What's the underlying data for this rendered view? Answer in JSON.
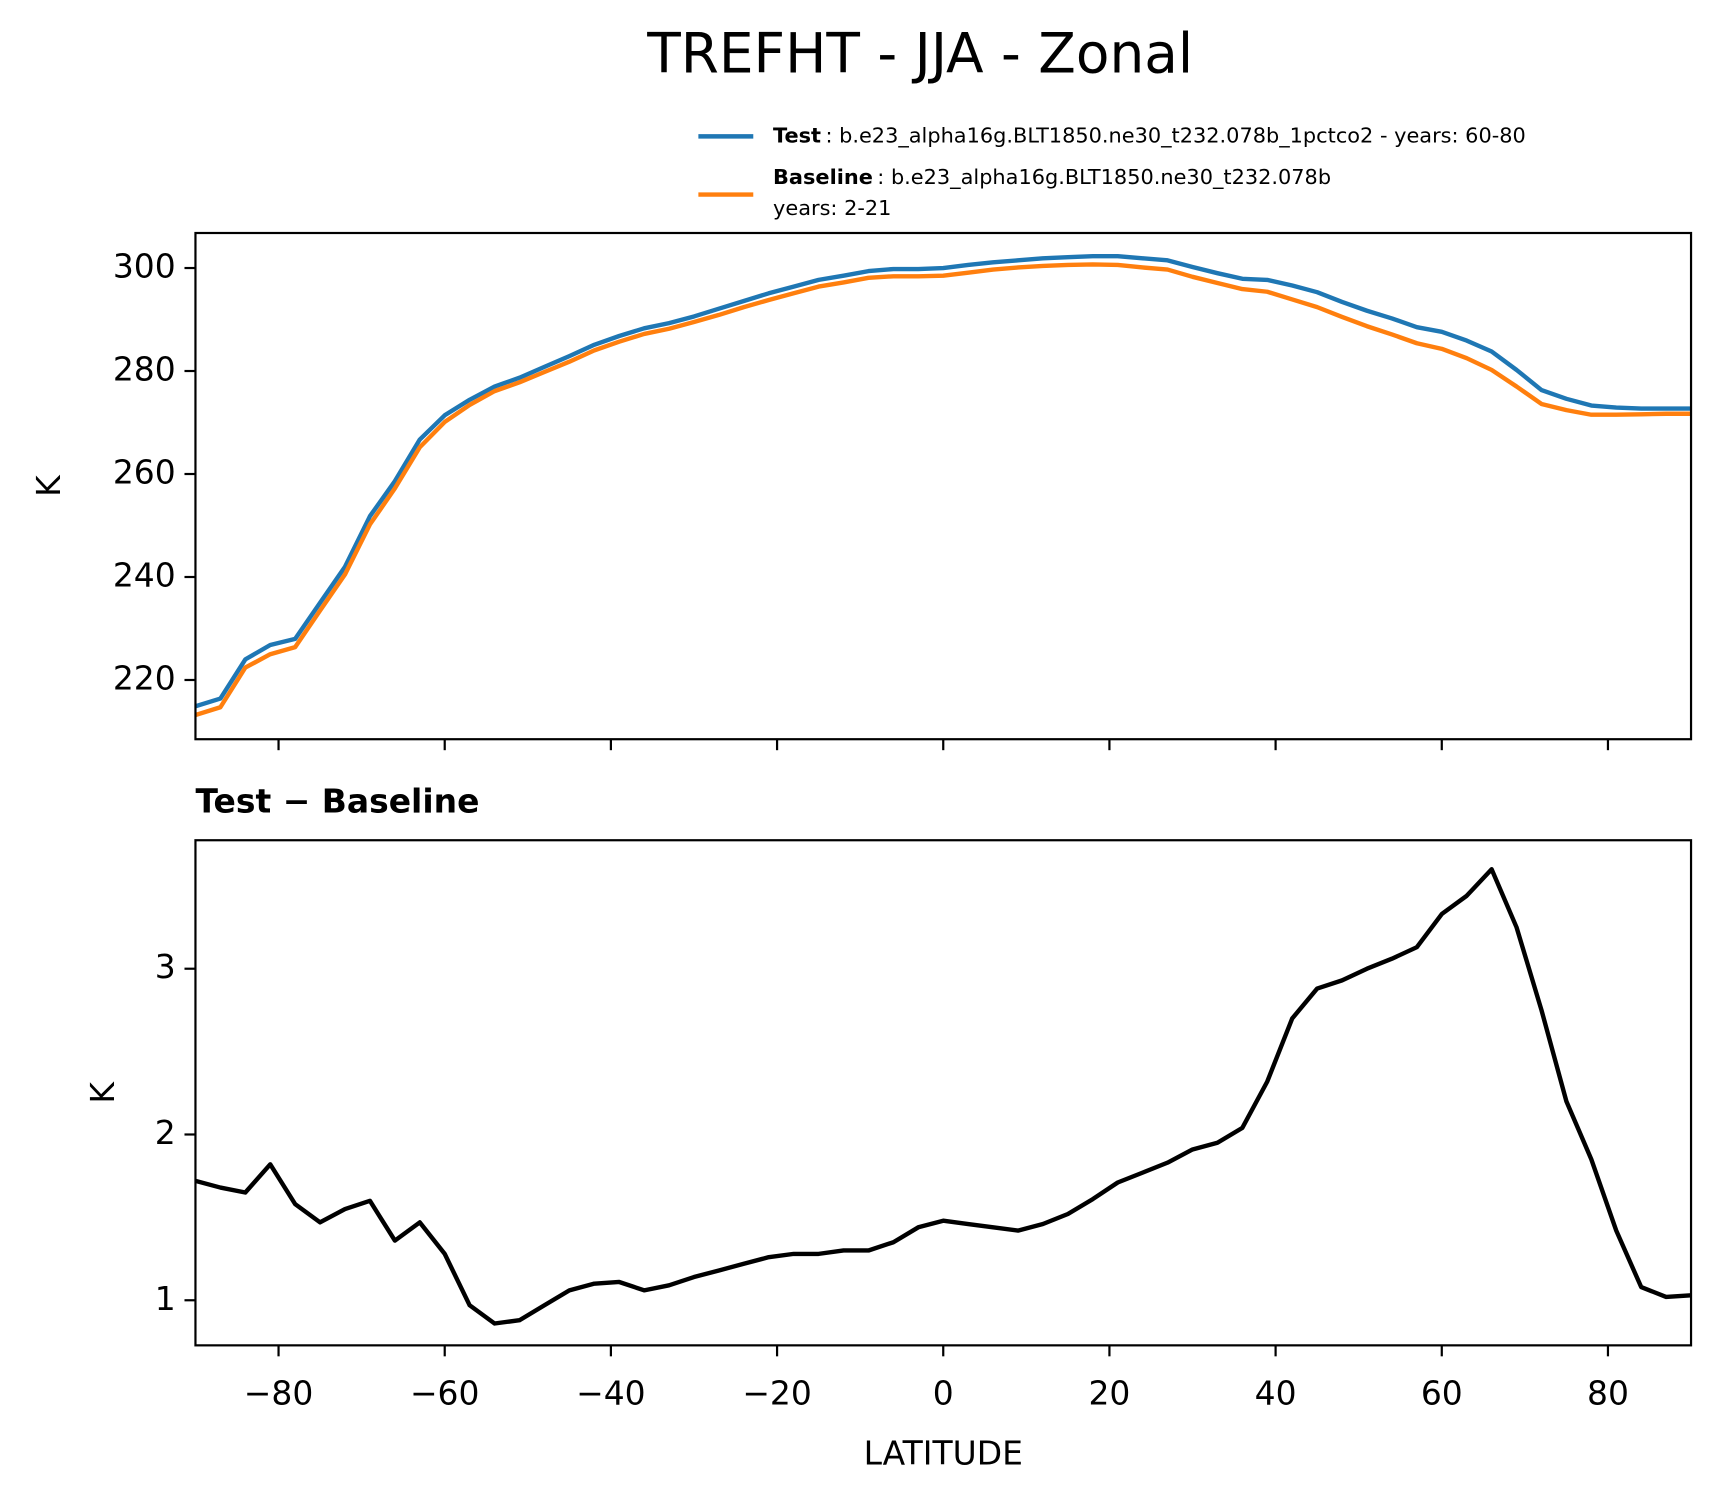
{
  "title": "TREFHT - JJA - Zonal",
  "chart_data": [
    {
      "type": "line",
      "ylabel": "K",
      "x": [
        -90,
        -87,
        -84,
        -81,
        -78,
        -75,
        -72,
        -69,
        -66,
        -63,
        -60,
        -57,
        -54,
        -51,
        -48,
        -45,
        -42,
        -39,
        -36,
        -33,
        -30,
        -27,
        -24,
        -21,
        -18,
        -15,
        -12,
        -9,
        -6,
        -3,
        0,
        3,
        6,
        9,
        12,
        15,
        18,
        21,
        24,
        27,
        30,
        33,
        36,
        39,
        42,
        45,
        48,
        51,
        54,
        57,
        60,
        63,
        66,
        69,
        72,
        75,
        78,
        81,
        84,
        87,
        90
      ],
      "series": [
        {
          "name": "Test",
          "description": ": b.e23_alpha16g.BLT1850.ne30_t232.078b_1pctco2 - years: 60-80",
          "color": "#1f77b4",
          "values": [
            214.9,
            216.4,
            224,
            226.8,
            228,
            235,
            242,
            251.8,
            258.6,
            266.7,
            271.4,
            274.4,
            277,
            278.7,
            280.8,
            282.9,
            285.1,
            286.8,
            288.3,
            289.3,
            290.6,
            292.1,
            293.6,
            295.1,
            296.4,
            297.7,
            298.5,
            299.4,
            299.8,
            299.8,
            300,
            300.6,
            301.1,
            301.5,
            301.9,
            302.1,
            302.3,
            302.3,
            301.9,
            301.5,
            300.2,
            299,
            297.9,
            297.7,
            296.6,
            295.3,
            293.4,
            291.7,
            290.2,
            288.5,
            287.6,
            285.9,
            283.8,
            280.2,
            276.3,
            274.6,
            273.3,
            272.9,
            272.7,
            272.7,
            272.7
          ]
        },
        {
          "name": "Baseline",
          "description": [
            ": b.e23_alpha16g.BLT1850.ne30_t232.078b",
            "years: 2-21"
          ],
          "color": "#ff7f0e",
          "values": [
            213.2,
            214.7,
            222.4,
            225.0,
            226.4,
            233.5,
            240.5,
            250.2,
            257.2,
            265.2,
            270.1,
            273.4,
            276.1,
            277.8,
            279.8,
            281.8,
            284.0,
            285.7,
            287.2,
            288.2,
            289.5,
            290.9,
            292.4,
            293.8,
            295.1,
            296.4,
            297.2,
            298.1,
            298.4,
            298.4,
            298.5,
            299.1,
            299.7,
            300.1,
            300.4,
            300.6,
            300.7,
            300.6,
            300.1,
            299.7,
            298.3,
            297.1,
            295.9,
            295.4,
            293.9,
            292.4,
            290.5,
            288.7,
            287.1,
            285.4,
            284.3,
            282.5,
            280.2,
            277.0,
            273.6,
            272.4,
            271.5,
            271.5,
            271.6,
            271.7,
            271.7
          ]
        }
      ],
      "xlim": [
        -90,
        90
      ],
      "xticks": [
        {
          "value": -80,
          "label": "−80"
        },
        {
          "value": -60,
          "label": "−60"
        },
        {
          "value": -40,
          "label": "−40"
        },
        {
          "value": -20,
          "label": "−20"
        },
        0,
        20,
        40,
        60,
        80
      ],
      "show_xtick_labels": false,
      "ylim": [
        208.5,
        306.8
      ],
      "yticks": [
        220,
        240,
        260,
        280,
        300
      ]
    },
    {
      "type": "line",
      "title": "Test − Baseline",
      "xlabel": "LATITUDE",
      "ylabel": "K",
      "x": [
        -90,
        -87,
        -84,
        -81,
        -78,
        -75,
        -72,
        -69,
        -66,
        -63,
        -60,
        -57,
        -54,
        -51,
        -48,
        -45,
        -42,
        -39,
        -36,
        -33,
        -30,
        -27,
        -24,
        -21,
        -18,
        -15,
        -12,
        -9,
        -6,
        -3,
        0,
        3,
        6,
        9,
        12,
        15,
        18,
        21,
        24,
        27,
        30,
        33,
        36,
        39,
        42,
        45,
        48,
        51,
        54,
        57,
        60,
        63,
        66,
        69,
        72,
        75,
        78,
        81,
        84,
        87,
        90
      ],
      "series": [
        {
          "color": "#000000",
          "values": [
            1.72,
            1.68,
            1.65,
            1.82,
            1.58,
            1.47,
            1.55,
            1.6,
            1.36,
            1.47,
            1.28,
            0.97,
            0.86,
            0.88,
            0.97,
            1.06,
            1.1,
            1.11,
            1.06,
            1.09,
            1.14,
            1.18,
            1.22,
            1.26,
            1.28,
            1.28,
            1.3,
            1.3,
            1.35,
            1.44,
            1.48,
            1.46,
            1.44,
            1.42,
            1.46,
            1.52,
            1.61,
            1.71,
            1.77,
            1.83,
            1.91,
            1.95,
            2.04,
            2.32,
            2.7,
            2.88,
            2.93,
            3.0,
            3.06,
            3.13,
            3.33,
            3.44,
            3.6,
            3.25,
            2.75,
            2.2,
            1.85,
            1.42,
            1.08,
            1.02,
            1.03
          ]
        }
      ],
      "xlim": [
        -90,
        90
      ],
      "xticks": [
        {
          "value": -80,
          "label": "−80"
        },
        {
          "value": -60,
          "label": "−60"
        },
        {
          "value": -40,
          "label": "−40"
        },
        {
          "value": -20,
          "label": "−20"
        },
        0,
        20,
        40,
        60,
        80
      ],
      "ylim": [
        0.728,
        3.775
      ],
      "yticks": [
        1,
        2,
        3
      ]
    }
  ]
}
